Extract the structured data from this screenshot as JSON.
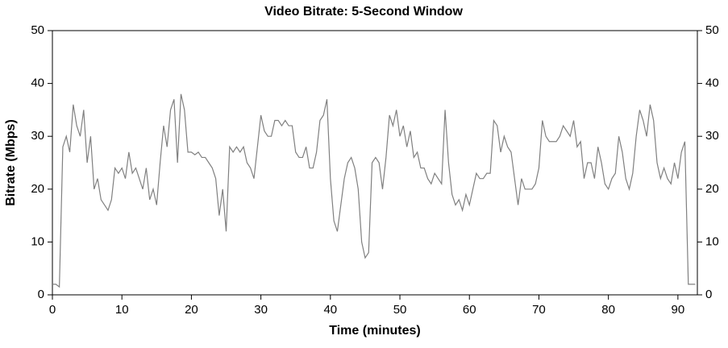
{
  "chart_data": {
    "type": "line",
    "title": "Video Bitrate: 5-Second Window",
    "x_label": "Time (minutes)",
    "y_label": "Bitrate (Mbps)",
    "x": [
      0,
      0.5,
      1,
      1.5,
      2,
      2.5,
      3,
      3.5,
      4,
      4.5,
      5,
      5.5,
      6,
      6.5,
      7,
      7.5,
      8,
      8.5,
      9,
      9.5,
      10,
      10.5,
      11,
      11.5,
      12,
      12.5,
      13,
      13.5,
      14,
      14.5,
      15,
      15.5,
      16,
      16.5,
      17,
      17.5,
      18,
      18.5,
      19,
      19.5,
      20,
      20.5,
      21,
      21.5,
      22,
      22.5,
      23,
      23.5,
      24,
      24.5,
      25,
      25.5,
      26,
      26.5,
      27,
      27.5,
      28,
      28.5,
      29,
      29.5,
      30,
      30.5,
      31,
      31.5,
      32,
      32.5,
      33,
      33.5,
      34,
      34.5,
      35,
      35.5,
      36,
      36.5,
      37,
      37.5,
      38,
      38.5,
      39,
      39.5,
      40,
      40.5,
      41,
      41.5,
      42,
      42.5,
      43,
      43.5,
      44,
      44.5,
      45,
      45.5,
      46,
      46.5,
      47,
      47.5,
      48,
      48.5,
      49,
      49.5,
      50,
      50.5,
      51,
      51.5,
      52,
      52.5,
      53,
      53.5,
      54,
      54.5,
      55,
      55.5,
      56,
      56.5,
      57,
      57.5,
      58,
      58.5,
      59,
      59.5,
      60,
      60.5,
      61,
      61.5,
      62,
      62.5,
      63,
      63.5,
      64,
      64.5,
      65,
      65.5,
      66,
      66.5,
      67,
      67.5,
      68,
      68.5,
      69,
      69.5,
      70,
      70.5,
      71,
      71.5,
      72,
      72.5,
      73,
      73.5,
      74,
      74.5,
      75,
      75.5,
      76,
      76.5,
      77,
      77.5,
      78,
      78.5,
      79,
      79.5,
      80,
      80.5,
      81,
      81.5,
      82,
      82.5,
      83,
      83.5,
      84,
      84.5,
      85,
      85.5,
      86,
      86.5,
      87,
      87.5,
      88,
      88.5,
      89,
      89.5,
      90,
      90.5,
      91,
      91.5,
      92,
      92.5
    ],
    "series": [
      {
        "color": "#808080",
        "values": [
          2,
          2,
          1.5,
          28,
          30,
          27,
          36,
          32,
          30,
          35,
          25,
          30,
          20,
          22,
          18,
          17,
          16,
          18,
          24,
          23,
          24,
          22,
          27,
          23,
          24,
          22,
          20,
          24,
          18,
          20,
          17,
          25,
          32,
          28,
          35,
          37,
          25,
          38,
          35,
          27,
          27,
          26.5,
          27,
          26,
          26,
          25,
          24,
          22,
          15,
          20,
          12,
          28,
          27,
          28,
          27,
          28,
          25,
          24,
          22,
          28,
          34,
          31,
          30,
          30,
          33,
          33,
          32,
          33,
          32,
          32,
          27,
          26,
          26,
          28,
          24,
          24,
          27,
          33,
          34,
          37,
          22,
          14,
          12,
          17,
          22,
          25,
          26,
          24,
          20,
          10,
          7,
          8,
          25,
          26,
          25,
          20,
          26,
          34,
          32,
          35,
          30,
          32,
          28,
          31,
          26,
          27,
          24,
          24,
          22,
          21,
          23,
          22,
          21,
          35,
          25,
          19,
          17,
          18,
          16,
          19,
          17,
          20,
          23,
          22,
          22,
          23,
          23,
          33,
          32,
          27,
          30,
          28,
          27,
          22,
          17,
          22,
          20,
          20,
          20,
          21,
          24,
          33,
          30,
          29,
          29,
          29,
          30,
          32,
          31,
          30,
          33,
          28,
          29,
          22,
          25,
          25,
          22,
          28,
          25,
          21,
          20,
          22,
          23,
          30,
          27,
          22,
          20,
          23,
          30,
          35,
          33,
          30,
          36,
          33,
          25,
          22,
          24,
          22,
          21,
          25,
          22,
          27,
          29,
          2,
          2,
          2
        ]
      }
    ],
    "xlim": [
      0,
      92.8
    ],
    "xticks": [
      0,
      10,
      20,
      30,
      40,
      50,
      60,
      70,
      80,
      90
    ],
    "ylim": [
      0,
      50
    ],
    "yticks": [
      0,
      10,
      20,
      30,
      40,
      50
    ],
    "y2lim": [
      0,
      50
    ],
    "y2ticks": [
      0,
      10,
      20,
      30,
      40,
      50
    ]
  }
}
